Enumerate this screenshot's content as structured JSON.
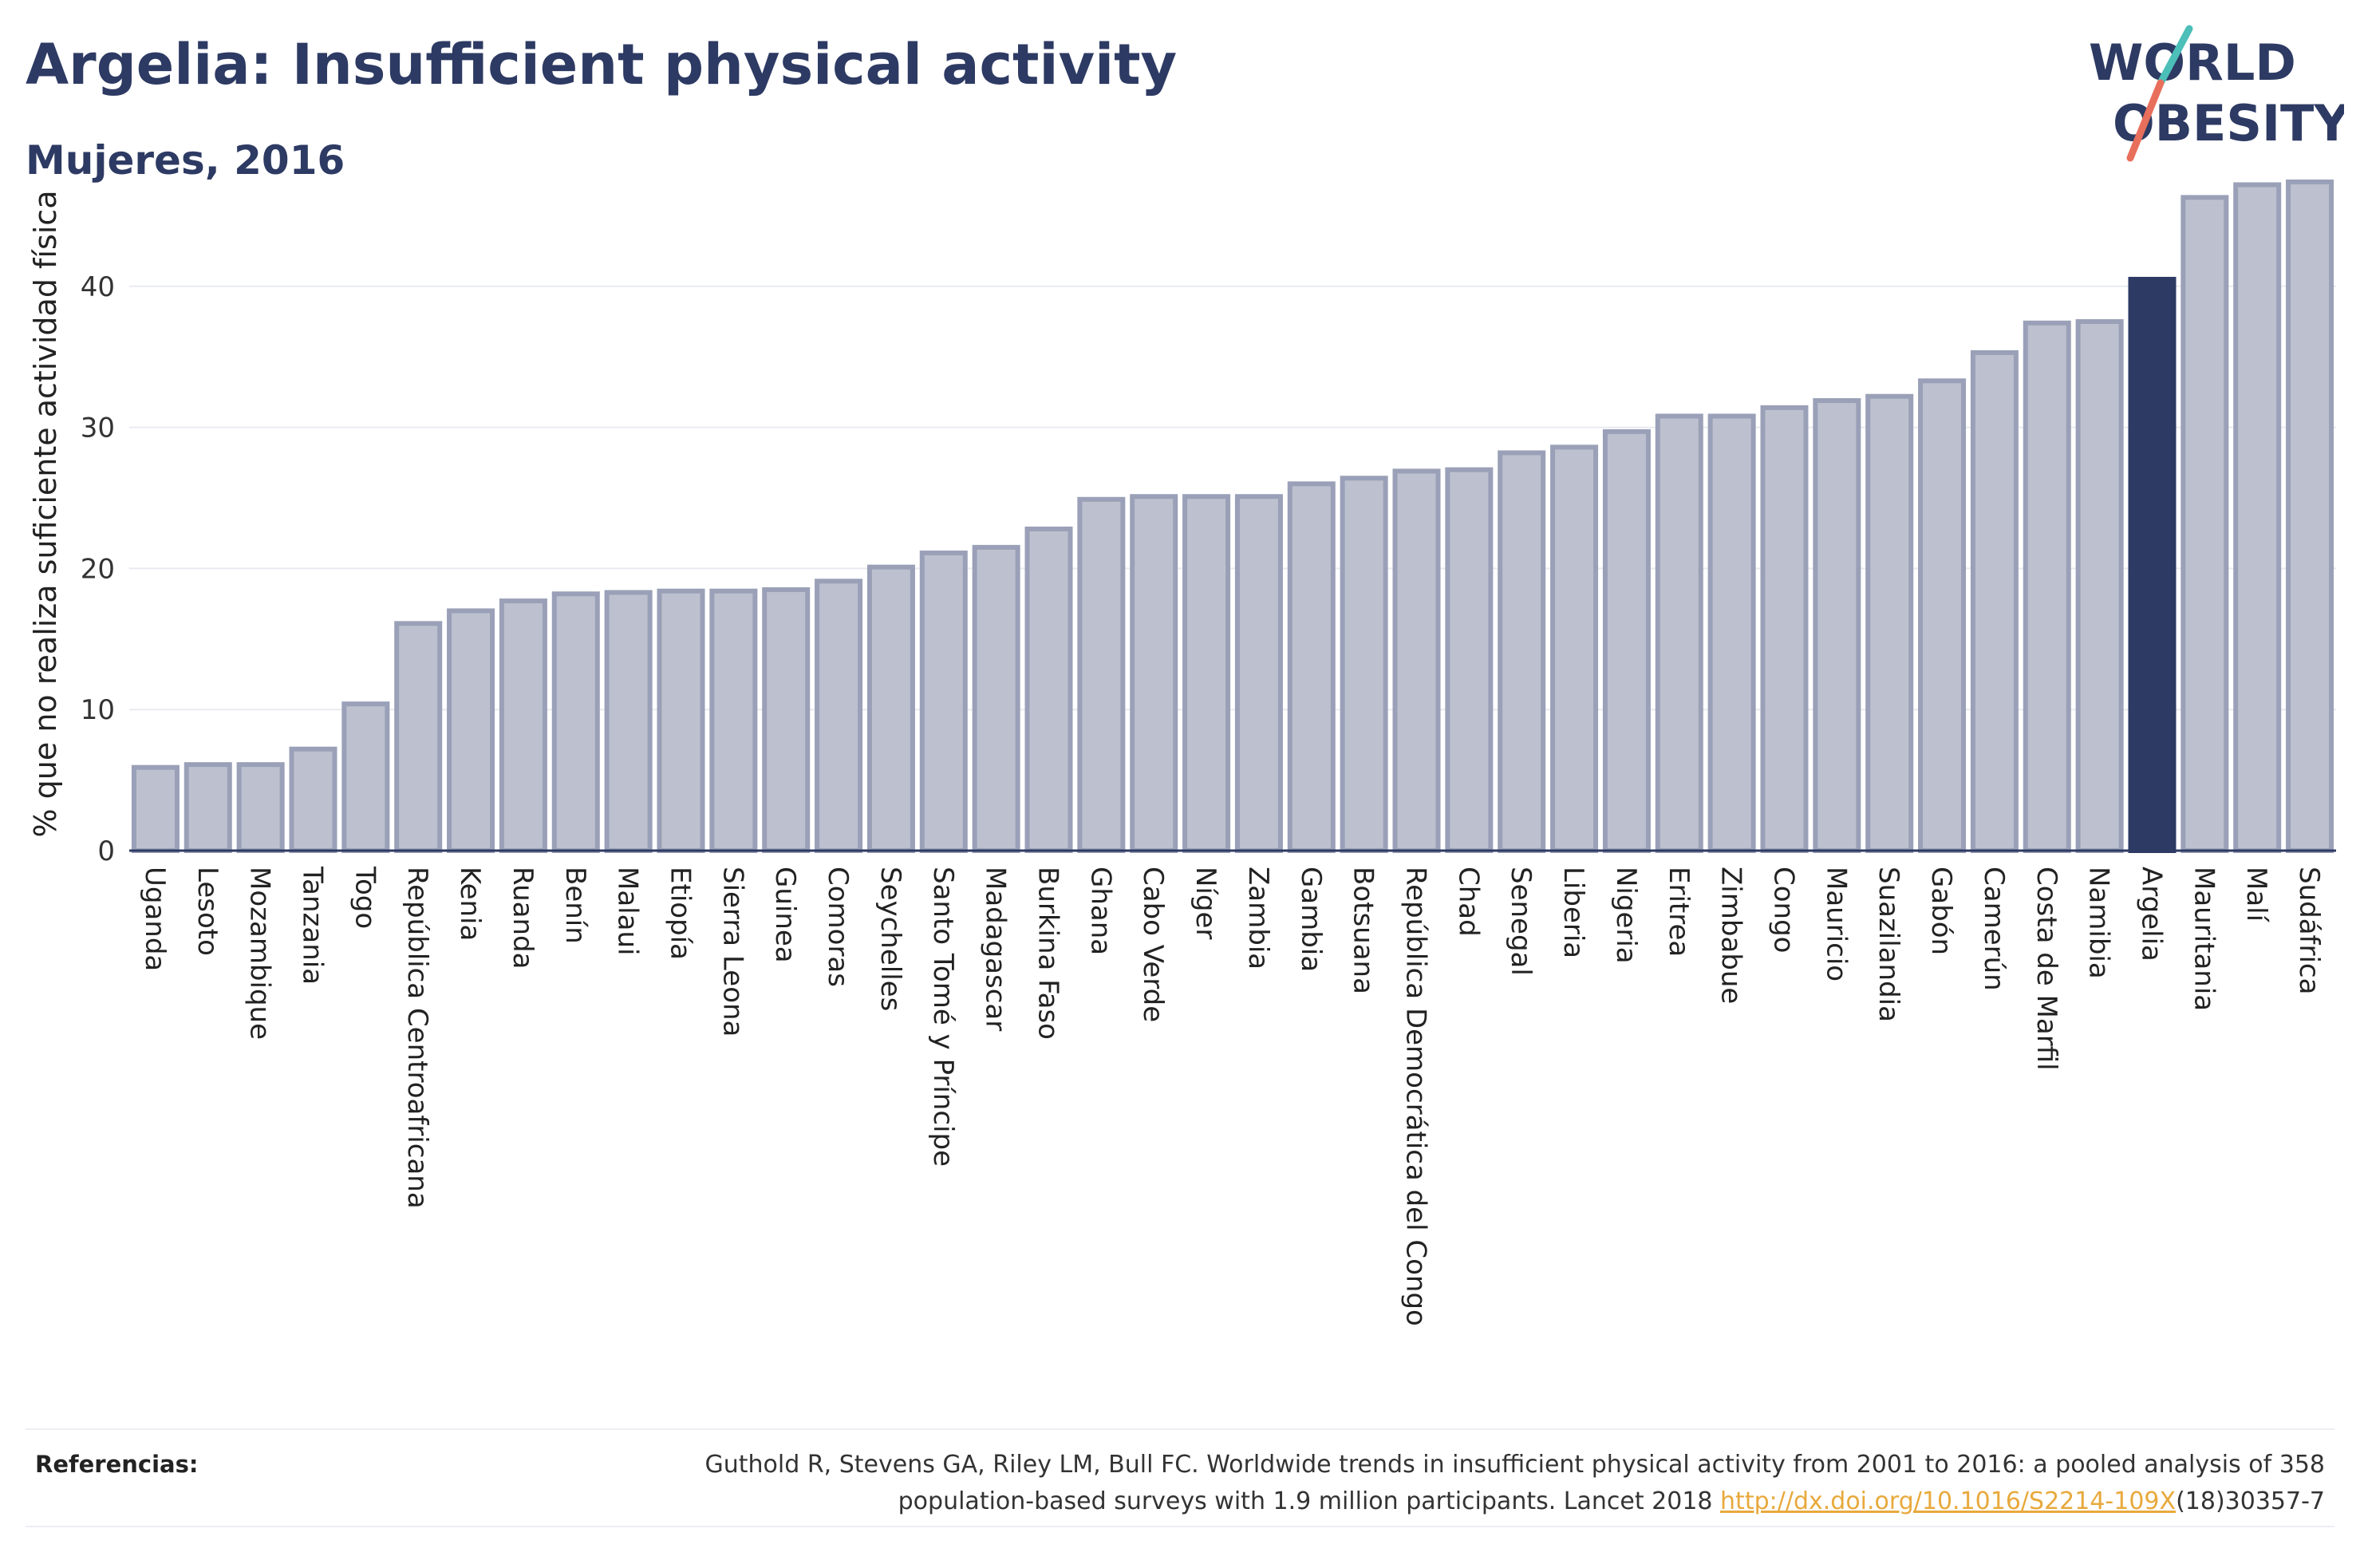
{
  "header": {
    "title": "Argelia: Insufficient physical activity",
    "subtitle": "Mujeres, 2016"
  },
  "logo": {
    "line1": "WORLD",
    "line2": "OBESITY",
    "accent_colors": [
      "#4bbfb8",
      "#e86f5c"
    ]
  },
  "chart_data": {
    "type": "bar",
    "title": "Argelia: Insufficient physical activity",
    "subtitle": "Mujeres, 2016",
    "xlabel": "",
    "ylabel": "% que no realiza suficiente actividad física",
    "ylim": [
      0,
      50
    ],
    "yticks": [
      0,
      10,
      20,
      30,
      40
    ],
    "grid": true,
    "highlight": "Argelia",
    "colors": {
      "bar": "#bdc1cf",
      "bar_edge": "#9aa0b7",
      "highlight": "#2d3a63"
    },
    "categories": [
      "Uganda",
      "Lesoto",
      "Mozambique",
      "Tanzania",
      "Togo",
      "República Centroafricana",
      "Kenia",
      "Ruanda",
      "Benín",
      "Malaui",
      "Etiopía",
      "Sierra Leona",
      "Guinea",
      "Comoras",
      "Seychelles",
      "Santo Tomé y Príncipe",
      "Madagascar",
      "Burkina Faso",
      "Ghana",
      "Cabo Verde",
      "Níger",
      "Zambia",
      "Gambia",
      "Botsuana",
      "República Democrática del Congo",
      "Chad",
      "Senegal",
      "Liberia",
      "Nigeria",
      "Eritrea",
      "Zimbabue",
      "Congo",
      "Mauricio",
      "Suazilandia",
      "Gabón",
      "Camerún",
      "Costa de Marfil",
      "Namibia",
      "Argelia",
      "Mauritania",
      "Malí",
      "Sudáfrica"
    ],
    "values": [
      5.9,
      6.1,
      6.1,
      7.2,
      10.4,
      16.1,
      17.0,
      17.7,
      18.2,
      18.3,
      18.4,
      18.4,
      18.5,
      19.1,
      20.1,
      21.1,
      21.5,
      22.8,
      24.9,
      25.1,
      25.1,
      25.1,
      26.0,
      26.4,
      26.9,
      27.0,
      28.2,
      28.6,
      29.7,
      30.8,
      30.8,
      31.4,
      31.9,
      32.2,
      33.3,
      35.3,
      37.4,
      37.5,
      40.5,
      46.3,
      47.2,
      47.4
    ]
  },
  "references": {
    "label": "Referencias:",
    "line1": "Guthold R, Stevens GA, Riley LM, Bull FC. Worldwide trends in insufficient physical activity from 2001 to 2016: a pooled analysis of 358",
    "line2_pre": "population-based surveys with 1.9 million participants. Lancet 2018 ",
    "link": "http://dx.doi.org/10.1016/S2214-109X",
    "line2_post": "(18)30357-7"
  }
}
